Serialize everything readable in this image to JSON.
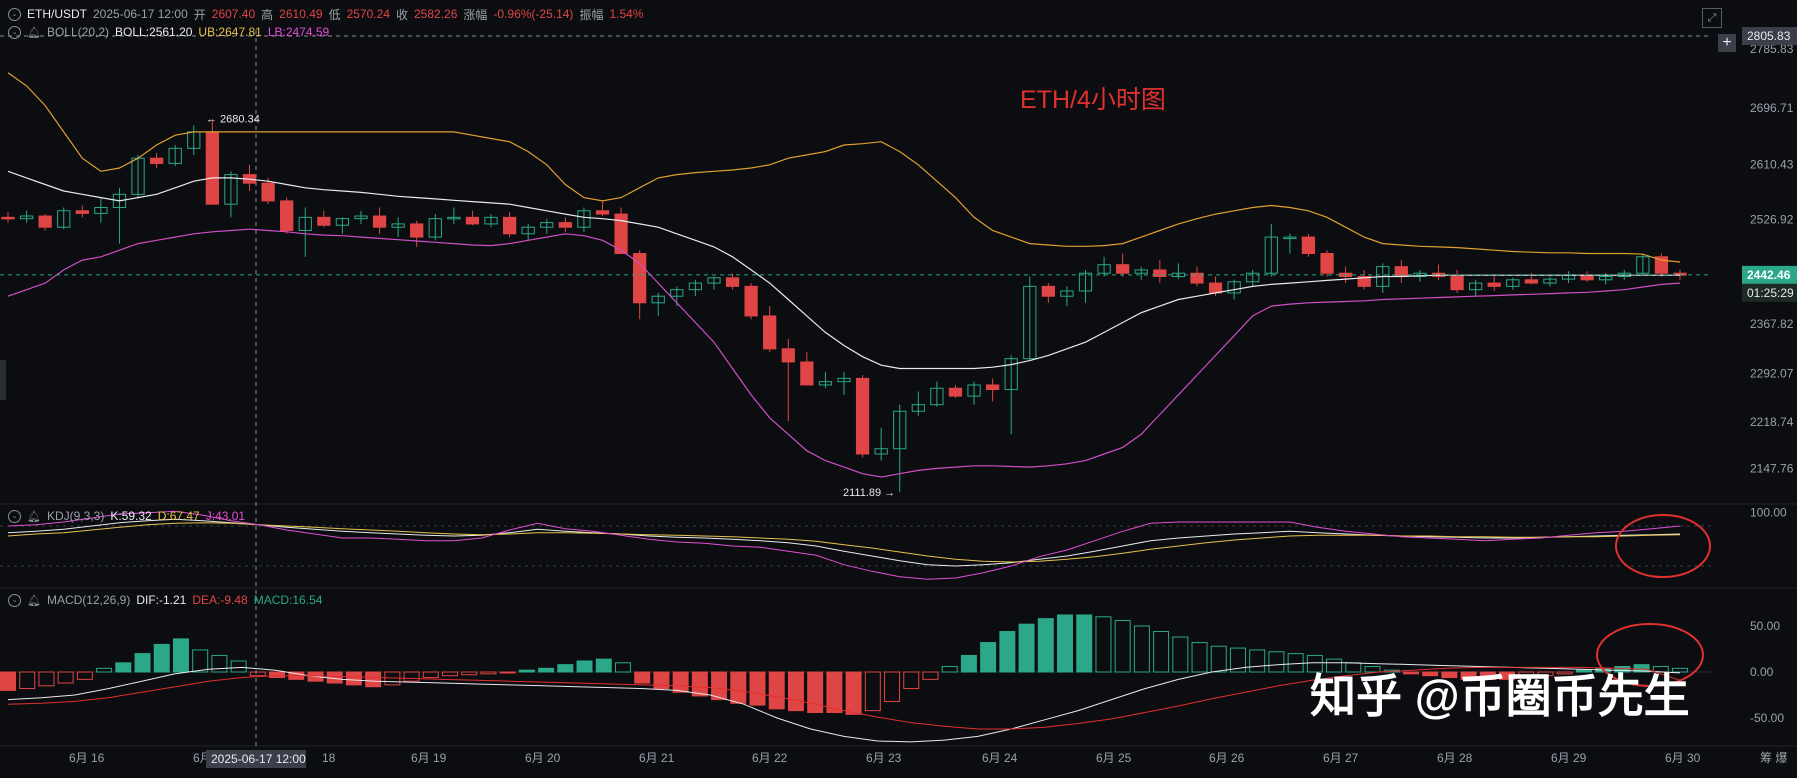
{
  "header": {
    "symbol": "ETH/USDT",
    "datetime": "2025-06-17 12:00",
    "open_label": "开",
    "open": "2607.40",
    "high_label": "高",
    "high": "2610.49",
    "low_label": "低",
    "low": "2570.24",
    "close_label": "收",
    "close": "2582.26",
    "change_label": "涨幅",
    "change": "-0.96%(-25.14)",
    "amplitude_label": "振幅",
    "amplitude": "1.54%"
  },
  "boll": {
    "label": "BOLL(20,2)",
    "mid": "BOLL:2561.20",
    "ub": "UB:2647.81",
    "lb": "LB:2474.59"
  },
  "kdj": {
    "label": "KDJ(9,3,3)",
    "k": "K:59.32",
    "d": "D:67.47",
    "j": "J:43.01"
  },
  "macd": {
    "label": "MACD(12,26,9)",
    "dif": "DIF:-1.21",
    "dea": "DEA:-9.48",
    "macd": "MACD:16.54"
  },
  "annotation_title": "ETH/4小时图",
  "watermark": "知乎 @币圈币先生",
  "price_axis_ticks": [
    "2785.83",
    "2696.71",
    "2610.43",
    "2526.92",
    "2367.82",
    "2292.07",
    "2218.74",
    "2147.76"
  ],
  "crosshair_price": "2805.83",
  "current_price": "2442.46",
  "countdown": "01:25:29",
  "high_marker": "← 2680.34",
  "low_marker": "2111.89 →",
  "kdj_ticks": [
    "100.00"
  ],
  "macd_ticks": [
    "50.00",
    "0.00",
    "-50.00"
  ],
  "time_labels": [
    "6月 16",
    "6月",
    "18",
    "6月 19",
    "6月 20",
    "6月 21",
    "6月 22",
    "6月 23",
    "6月 24",
    "6月 25",
    "6月 26",
    "6月 27",
    "6月 28",
    "6月 29",
    "6月 30"
  ],
  "crosshair_time": "2025-06-17 12:00",
  "axis_corner": "筹 爆",
  "colors": {
    "up": "#2aa889",
    "down": "#e04545",
    "ub": "#e0a030",
    "mid": "#e8eaef",
    "lb": "#d04ec8",
    "k": "#e8eaef",
    "d": "#e6c24d",
    "j": "#e24ed6",
    "dif": "#e8eaef",
    "dea": "#e03030",
    "circle": "#e03030"
  },
  "chart_data": {
    "type": "candlestick",
    "interval": "4h",
    "y_range": [
      2100,
      2815
    ],
    "x_range_dates": [
      "2025-06-15 16:00",
      "2025-06-30 08:00"
    ],
    "candles_ohlc": [
      [
        2530,
        2538,
        2522,
        2528
      ],
      [
        2528,
        2540,
        2522,
        2532
      ],
      [
        2532,
        2535,
        2510,
        2515
      ],
      [
        2515,
        2545,
        2512,
        2540
      ],
      [
        2540,
        2548,
        2530,
        2536
      ],
      [
        2536,
        2560,
        2522,
        2545
      ],
      [
        2545,
        2575,
        2490,
        2565
      ],
      [
        2565,
        2625,
        2560,
        2620
      ],
      [
        2620,
        2628,
        2605,
        2612
      ],
      [
        2612,
        2640,
        2608,
        2635
      ],
      [
        2635,
        2670,
        2625,
        2660
      ],
      [
        2660,
        2680,
        2550,
        2550
      ],
      [
        2550,
        2600,
        2530,
        2595
      ],
      [
        2595,
        2610,
        2570,
        2582
      ],
      [
        2582,
        2590,
        2550,
        2555
      ],
      [
        2555,
        2560,
        2505,
        2510
      ],
      [
        2510,
        2545,
        2470,
        2530
      ],
      [
        2530,
        2540,
        2515,
        2518
      ],
      [
        2518,
        2530,
        2505,
        2528
      ],
      [
        2528,
        2540,
        2520,
        2532
      ],
      [
        2532,
        2545,
        2505,
        2515
      ],
      [
        2515,
        2530,
        2500,
        2520
      ],
      [
        2520,
        2525,
        2485,
        2500
      ],
      [
        2500,
        2535,
        2495,
        2528
      ],
      [
        2528,
        2545,
        2520,
        2530
      ],
      [
        2530,
        2540,
        2518,
        2520
      ],
      [
        2520,
        2535,
        2515,
        2530
      ],
      [
        2530,
        2538,
        2500,
        2505
      ],
      [
        2505,
        2520,
        2495,
        2515
      ],
      [
        2515,
        2528,
        2505,
        2522
      ],
      [
        2522,
        2530,
        2508,
        2515
      ],
      [
        2515,
        2545,
        2508,
        2540
      ],
      [
        2540,
        2555,
        2532,
        2535
      ],
      [
        2535,
        2545,
        2490,
        2475
      ],
      [
        2475,
        2480,
        2375,
        2400
      ],
      [
        2400,
        2415,
        2380,
        2410
      ],
      [
        2410,
        2425,
        2395,
        2420
      ],
      [
        2420,
        2435,
        2410,
        2430
      ],
      [
        2430,
        2440,
        2420,
        2438
      ],
      [
        2438,
        2445,
        2420,
        2425
      ],
      [
        2425,
        2430,
        2375,
        2380
      ],
      [
        2380,
        2395,
        2325,
        2330
      ],
      [
        2330,
        2345,
        2220,
        2310
      ],
      [
        2310,
        2325,
        2280,
        2275
      ],
      [
        2275,
        2295,
        2270,
        2280
      ],
      [
        2280,
        2295,
        2260,
        2285
      ],
      [
        2285,
        2290,
        2165,
        2170
      ],
      [
        2170,
        2210,
        2160,
        2178
      ],
      [
        2178,
        2245,
        2112,
        2235
      ],
      [
        2235,
        2265,
        2228,
        2245
      ],
      [
        2245,
        2280,
        2242,
        2270
      ],
      [
        2270,
        2275,
        2255,
        2258
      ],
      [
        2258,
        2280,
        2245,
        2275
      ],
      [
        2275,
        2285,
        2250,
        2268
      ],
      [
        2268,
        2320,
        2200,
        2315
      ],
      [
        2315,
        2440,
        2312,
        2425
      ],
      [
        2425,
        2430,
        2400,
        2410
      ],
      [
        2410,
        2425,
        2395,
        2418
      ],
      [
        2418,
        2450,
        2400,
        2445
      ],
      [
        2445,
        2470,
        2440,
        2458
      ],
      [
        2458,
        2475,
        2440,
        2445
      ],
      [
        2445,
        2455,
        2435,
        2450
      ],
      [
        2450,
        2465,
        2430,
        2440
      ],
      [
        2440,
        2460,
        2436,
        2445
      ],
      [
        2445,
        2455,
        2425,
        2430
      ],
      [
        2430,
        2440,
        2410,
        2415
      ],
      [
        2415,
        2435,
        2405,
        2432
      ],
      [
        2432,
        2450,
        2425,
        2445
      ],
      [
        2445,
        2520,
        2440,
        2500
      ],
      [
        2500,
        2505,
        2475,
        2500
      ],
      [
        2500,
        2505,
        2470,
        2475
      ],
      [
        2475,
        2480,
        2440,
        2445
      ],
      [
        2445,
        2455,
        2430,
        2440
      ],
      [
        2440,
        2450,
        2420,
        2425
      ],
      [
        2425,
        2460,
        2415,
        2455
      ],
      [
        2455,
        2465,
        2430,
        2440
      ],
      [
        2440,
        2450,
        2432,
        2445
      ],
      [
        2445,
        2458,
        2435,
        2440
      ],
      [
        2440,
        2450,
        2415,
        2420
      ],
      [
        2420,
        2435,
        2410,
        2430
      ],
      [
        2430,
        2440,
        2418,
        2425
      ],
      [
        2425,
        2438,
        2420,
        2435
      ],
      [
        2435,
        2445,
        2428,
        2430
      ],
      [
        2430,
        2440,
        2425,
        2436
      ],
      [
        2436,
        2448,
        2430,
        2442
      ],
      [
        2442,
        2448,
        2432,
        2435
      ],
      [
        2435,
        2445,
        2428,
        2440
      ],
      [
        2440,
        2450,
        2435,
        2445
      ],
      [
        2445,
        2475,
        2442,
        2470
      ],
      [
        2470,
        2475,
        2440,
        2445
      ],
      [
        2445,
        2450,
        2435,
        2442
      ]
    ],
    "bollinger": {
      "ub": [
        2750,
        2730,
        2700,
        2660,
        2620,
        2600,
        2605,
        2620,
        2640,
        2655,
        2660,
        2660,
        2660,
        2660,
        2660,
        2660,
        2660,
        2660,
        2660,
        2660,
        2660,
        2660,
        2660,
        2660,
        2660,
        2655,
        2650,
        2645,
        2630,
        2610,
        2580,
        2560,
        2555,
        2560,
        2575,
        2590,
        2595,
        2598,
        2600,
        2602,
        2605,
        2610,
        2620,
        2625,
        2630,
        2640,
        2642,
        2645,
        2630,
        2610,
        2585,
        2560,
        2530,
        2510,
        2500,
        2490,
        2488,
        2486,
        2486,
        2487,
        2490,
        2500,
        2510,
        2520,
        2528,
        2535,
        2540,
        2545,
        2548,
        2545,
        2540,
        2530,
        2515,
        2500,
        2490,
        2488,
        2486,
        2485,
        2484,
        2482,
        2480,
        2478,
        2477,
        2476,
        2476,
        2475,
        2475,
        2475,
        2474,
        2465,
        2462
      ],
      "mid": [
        2600,
        2590,
        2580,
        2570,
        2565,
        2560,
        2555,
        2560,
        2565,
        2575,
        2585,
        2590,
        2590,
        2588,
        2585,
        2580,
        2575,
        2572,
        2570,
        2568,
        2565,
        2562,
        2560,
        2558,
        2556,
        2554,
        2552,
        2550,
        2545,
        2540,
        2535,
        2530,
        2528,
        2525,
        2520,
        2515,
        2505,
        2495,
        2485,
        2470,
        2450,
        2430,
        2405,
        2380,
        2355,
        2335,
        2318,
        2305,
        2300,
        2300,
        2300,
        2300,
        2300,
        2302,
        2306,
        2312,
        2320,
        2330,
        2340,
        2355,
        2370,
        2385,
        2395,
        2405,
        2410,
        2415,
        2420,
        2425,
        2428,
        2430,
        2432,
        2434,
        2436,
        2438,
        2440,
        2440,
        2441,
        2442,
        2442,
        2442,
        2442,
        2442,
        2442,
        2442,
        2442,
        2442,
        2442,
        2442,
        2442,
        2442,
        2442
      ],
      "lb": [
        2410,
        2420,
        2430,
        2450,
        2465,
        2470,
        2480,
        2490,
        2495,
        2500,
        2505,
        2508,
        2510,
        2512,
        2510,
        2508,
        2505,
        2503,
        2502,
        2500,
        2498,
        2496,
        2494,
        2492,
        2490,
        2488,
        2487,
        2490,
        2495,
        2500,
        2505,
        2502,
        2495,
        2480,
        2460,
        2430,
        2400,
        2370,
        2340,
        2300,
        2260,
        2225,
        2200,
        2175,
        2160,
        2150,
        2140,
        2135,
        2140,
        2145,
        2148,
        2150,
        2152,
        2152,
        2151,
        2150,
        2152,
        2155,
        2160,
        2170,
        2180,
        2200,
        2230,
        2260,
        2290,
        2320,
        2350,
        2380,
        2395,
        2398,
        2400,
        2401,
        2402,
        2403,
        2405,
        2406,
        2407,
        2408,
        2409,
        2410,
        2411,
        2412,
        2413,
        2414,
        2415,
        2416,
        2418,
        2420,
        2424,
        2428,
        2430
      ]
    },
    "kdj_k": [
      70,
      72,
      75,
      80,
      85,
      88,
      90,
      88,
      85,
      82,
      78,
      75,
      72,
      70,
      68,
      66,
      65,
      66,
      70,
      75,
      72,
      70,
      68,
      65,
      63,
      62,
      60,
      58,
      55,
      50,
      42,
      35,
      28,
      22,
      20,
      22,
      25,
      30,
      35,
      42,
      50,
      58,
      62,
      65,
      68,
      70,
      72,
      70,
      68,
      66,
      65,
      64,
      63,
      62,
      62,
      63,
      64,
      65,
      66,
      67,
      68
    ],
    "kdj_d": [
      65,
      68,
      70,
      74,
      78,
      82,
      84,
      85,
      84,
      82,
      80,
      78,
      76,
      74,
      72,
      70,
      68,
      67,
      68,
      70,
      70,
      69,
      68,
      67,
      66,
      65,
      64,
      62,
      60,
      57,
      52,
      47,
      41,
      35,
      30,
      27,
      26,
      27,
      30,
      34,
      39,
      45,
      50,
      55,
      59,
      62,
      65,
      66,
      66,
      66,
      65,
      65,
      64,
      64,
      63,
      63,
      64,
      64,
      65,
      66,
      67
    ],
    "kdj_j": [
      80,
      82,
      86,
      92,
      98,
      100,
      102,
      96,
      88,
      82,
      74,
      68,
      62,
      62,
      60,
      58,
      58,
      62,
      74,
      84,
      76,
      72,
      66,
      60,
      56,
      54,
      50,
      48,
      42,
      36,
      22,
      12,
      4,
      0,
      2,
      10,
      20,
      34,
      44,
      58,
      72,
      84,
      86,
      86,
      86,
      86,
      86,
      78,
      72,
      68,
      64,
      62,
      60,
      58,
      60,
      62,
      66,
      70,
      72,
      76,
      80
    ],
    "macd_dif": [
      -30,
      -28,
      -25,
      -18,
      -10,
      -2,
      3,
      5,
      2,
      -4,
      -8,
      -10,
      -11,
      -12,
      -13,
      -14,
      -15,
      -16,
      -17,
      -18,
      -20,
      -25,
      -35,
      -50,
      -62,
      -70,
      -75,
      -76,
      -74,
      -70,
      -62,
      -52,
      -42,
      -30,
      -18,
      -8,
      0,
      5,
      8,
      10,
      10,
      9,
      8,
      7,
      6,
      5,
      4,
      3,
      2,
      1,
      -1
    ],
    "macd_dea": [
      -35,
      -34,
      -32,
      -28,
      -22,
      -16,
      -10,
      -6,
      -4,
      -4,
      -5,
      -6,
      -7,
      -8,
      -9,
      -10,
      -11,
      -12,
      -13,
      -14,
      -15,
      -17,
      -21,
      -27,
      -34,
      -42,
      -49,
      -55,
      -59,
      -62,
      -62,
      -60,
      -56,
      -51,
      -44,
      -37,
      -29,
      -22,
      -15,
      -9,
      -4,
      0,
      2,
      4,
      5,
      5,
      5,
      5,
      4,
      3,
      -9
    ],
    "macd_hist": [
      -20,
      -18,
      -15,
      -12,
      -8,
      4,
      10,
      20,
      30,
      36,
      24,
      18,
      12,
      -4,
      -6,
      -8,
      -10,
      -12,
      -14,
      -16,
      -14,
      -10,
      -6,
      -4,
      -3,
      -2,
      -1,
      2,
      4,
      8,
      12,
      14,
      10,
      -12,
      -18,
      -22,
      -26,
      -30,
      -34,
      -36,
      -40,
      -42,
      -44,
      -44,
      -46,
      -42,
      -32,
      -18,
      -8,
      6,
      18,
      32,
      44,
      52,
      58,
      62,
      62,
      60,
      56,
      50,
      44,
      38,
      32,
      28,
      26,
      24,
      22,
      20,
      18,
      14,
      10,
      6,
      2,
      -2,
      -4,
      -6,
      -8,
      -8,
      -8,
      -6,
      -4,
      -2,
      2,
      4,
      6,
      8,
      6,
      4
    ]
  }
}
